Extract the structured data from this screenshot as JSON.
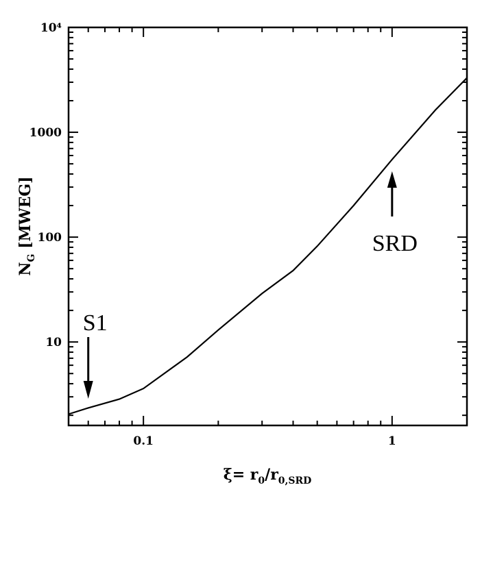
{
  "chart_data": {
    "type": "line",
    "x_scale": "log",
    "y_scale": "log",
    "xlim": [
      0.05,
      2
    ],
    "ylim": [
      1.6,
      10000
    ],
    "grid": false,
    "title": "",
    "xlabel": {
      "prefix": "ξ=  r",
      "sub1": "0",
      "mid": "/r",
      "sub2": "0,SRD"
    },
    "ylabel": {
      "main": "N",
      "sub": "G",
      "unit": " [MWEG]"
    },
    "x_ticks": [
      {
        "value": 0.1,
        "label": "0.1"
      },
      {
        "value": 1,
        "label": "1"
      }
    ],
    "y_ticks": [
      {
        "value": 10,
        "label": "10"
      },
      {
        "value": 100,
        "label": "100"
      },
      {
        "value": 1000,
        "label": "1000"
      },
      {
        "value": 10000,
        "label": "10⁴"
      }
    ],
    "series": [
      {
        "x": [
          0.05,
          0.06,
          0.08,
          0.1,
          0.15,
          0.2,
          0.3,
          0.4,
          0.5,
          0.7,
          1.0,
          1.5,
          2.0
        ],
        "y": [
          2.05,
          2.35,
          2.85,
          3.6,
          7.2,
          13,
          29,
          48,
          82,
          200,
          550,
          1650,
          3300
        ]
      }
    ],
    "annotations": [
      {
        "text": "S1",
        "x": 0.06,
        "arrow": "down"
      },
      {
        "text": "SRD",
        "x": 1.0,
        "arrow": "up"
      }
    ]
  }
}
